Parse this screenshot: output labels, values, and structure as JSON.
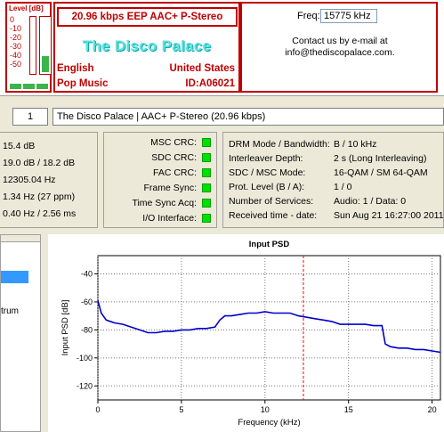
{
  "level": {
    "title": "Level [dB]",
    "ticks": [
      "0",
      "-10",
      "-20",
      "-30",
      "-40",
      "-50"
    ],
    "right_fill_fraction": 0.28,
    "left_fill_fraction": 0.0
  },
  "station": {
    "bitrate_line": "20.96 kbps EEP   AAC+  P-Stereo",
    "name": "The Disco Palace",
    "language": "English",
    "country": "United States",
    "program_type": "Pop Music",
    "id": "ID:A06021"
  },
  "contact": {
    "freq_label": "Freq:",
    "freq_value": "15775 kHz",
    "line1": "Contact us by e-mail at",
    "line2": "info@thediscopalace.com."
  },
  "service": {
    "number": "1",
    "label": "The Disco Palace  |  AAC+ P-Stereo (20.96 kbps)"
  },
  "signal": {
    "rows": [
      "15.4 dB",
      "19.0 dB / 18.2 dB",
      "12305.04 Hz",
      "1.34 Hz (27 ppm)",
      "0.40 Hz / 2.56 ms"
    ]
  },
  "crc": {
    "items": [
      {
        "label": "MSC CRC:",
        "ok": true
      },
      {
        "label": "SDC CRC:",
        "ok": true
      },
      {
        "label": "FAC CRC:",
        "ok": true
      },
      {
        "label": "Frame Sync:",
        "ok": true
      },
      {
        "label": "Time Sync Acq:",
        "ok": true
      },
      {
        "label": "I/O Interface:",
        "ok": true
      }
    ]
  },
  "mode": {
    "rows": [
      {
        "label": "DRM Mode / Bandwidth:",
        "value": "B / 10 kHz"
      },
      {
        "label": "Interleaver Depth:",
        "value": "2 s (Long Interleaving)"
      },
      {
        "label": "SDC / MSC Mode:",
        "value": "16-QAM / SM 64-QAM"
      },
      {
        "label": "Prot. Level (B / A):",
        "value": "1 / 0"
      },
      {
        "label": "Number of Services:",
        "value": "Audio: 1 / Data: 0"
      },
      {
        "label": "Received time - date:",
        "value": "Sun Aug 21 16:27:00 2011"
      }
    ]
  },
  "left_pane": {
    "text": "trum"
  },
  "colors": {
    "accent_red": "#c00000",
    "led_green": "#00e000",
    "plot_line": "#0000cc",
    "marker": "#ff0000"
  },
  "chart_data": {
    "type": "line",
    "title": "Input PSD",
    "xlabel": "Frequency (kHz)",
    "ylabel": "Input PSD [dB]",
    "xlim": [
      0,
      20.5
    ],
    "ylim": [
      -130,
      -27
    ],
    "xticks": [
      0,
      5,
      10,
      15,
      20
    ],
    "yticks": [
      -40,
      -60,
      -80,
      -100,
      -120
    ],
    "marker_x": 12.3,
    "grid": true,
    "series": [
      {
        "name": "Input PSD",
        "x": [
          0,
          0.2,
          0.5,
          1,
          1.5,
          2,
          2.5,
          3,
          3.5,
          4,
          4.5,
          5,
          5.5,
          6,
          6.5,
          7,
          7.3,
          7.6,
          8,
          8.5,
          9,
          9.5,
          10,
          10.5,
          11,
          11.5,
          12,
          12.5,
          13,
          13.5,
          14,
          14.5,
          15,
          15.5,
          16,
          16.5,
          17,
          17.2,
          17.5,
          18,
          18.5,
          19,
          19.5,
          20,
          20.5
        ],
        "y": [
          -59,
          -68,
          -73,
          -75,
          -76,
          -78,
          -80,
          -82,
          -82,
          -81,
          -81,
          -80,
          -80,
          -79,
          -79,
          -78,
          -73,
          -70,
          -70,
          -69,
          -68,
          -68,
          -67,
          -68,
          -68,
          -68,
          -70,
          -71,
          -72,
          -73,
          -74,
          -76,
          -76,
          -76,
          -76,
          -77,
          -77,
          -90,
          -92,
          -93,
          -93,
          -94,
          -94,
          -95,
          -96
        ]
      }
    ]
  }
}
